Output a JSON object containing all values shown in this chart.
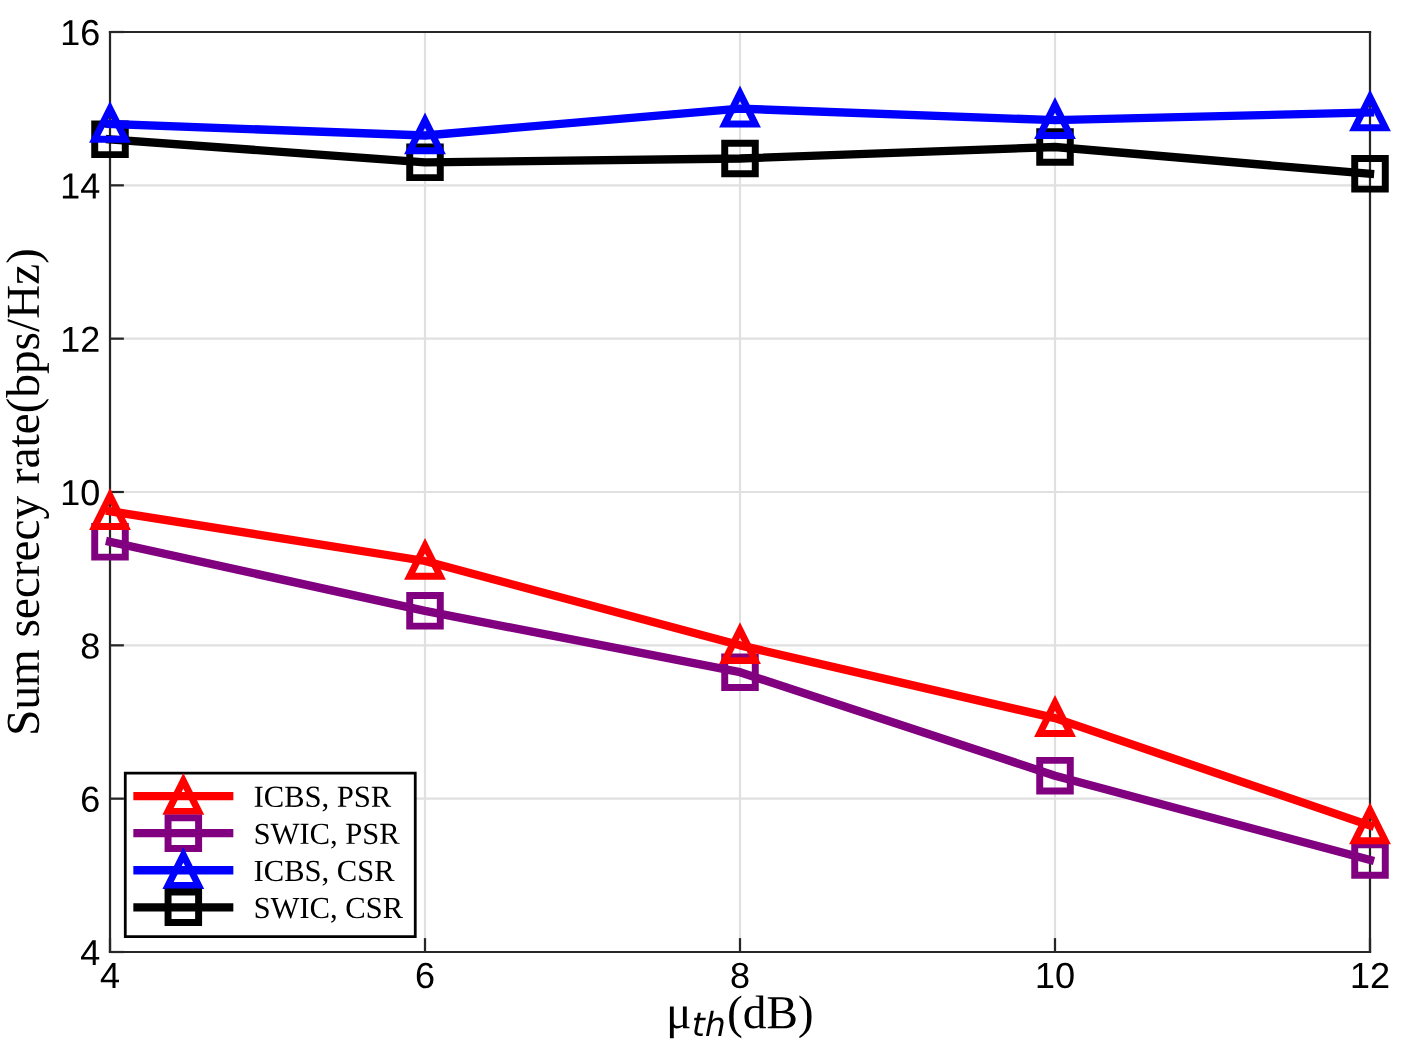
{
  "chart_data": {
    "type": "line",
    "xlabel": "μ$_{th}$(dB)",
    "ylabel": "Sum secrecy rate(bps/Hz)",
    "x": [
      4,
      6,
      8,
      10,
      12
    ],
    "series": [
      {
        "name": "ICBS, PSR",
        "color": "#ff0000",
        "marker": "triangle",
        "values": [
          9.75,
          9.1,
          8.0,
          7.05,
          5.65
        ]
      },
      {
        "name": "SWIC, PSR",
        "color": "#800080",
        "marker": "square",
        "values": [
          9.35,
          8.45,
          7.65,
          6.3,
          5.2
        ]
      },
      {
        "name": "ICBS, CSR",
        "color": "#0000ff",
        "marker": "triangle",
        "values": [
          14.8,
          14.65,
          15.0,
          14.85,
          14.95
        ]
      },
      {
        "name": "SWIC, CSR",
        "color": "#000000",
        "marker": "square",
        "values": [
          14.6,
          14.3,
          14.35,
          14.5,
          14.15
        ]
      }
    ],
    "xlim": [
      4,
      12
    ],
    "ylim": [
      4,
      16
    ],
    "xticks": [
      4,
      6,
      8,
      10,
      12
    ],
    "yticks": [
      4,
      6,
      8,
      10,
      12,
      14,
      16
    ],
    "grid": true,
    "legend": "bottom left",
    "line_style": "solid"
  }
}
